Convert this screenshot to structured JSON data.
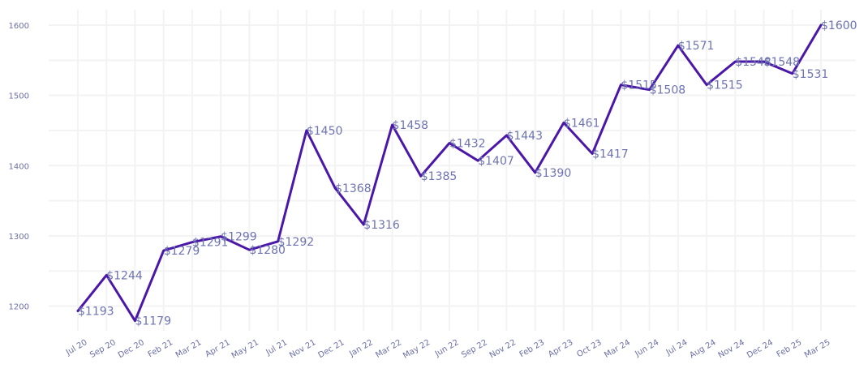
{
  "chart_data": {
    "type": "line",
    "title": "",
    "xlabel": "",
    "ylabel": "",
    "ylim": [
      1160,
      1620
    ],
    "yticks": [
      1200,
      1300,
      1400,
      1500,
      1600
    ],
    "grid": true,
    "x": [
      "Jul 20",
      "Sep 20",
      "Dec 20",
      "Feb 21",
      "Mar 21",
      "Apr 21",
      "May 21",
      "Jul 21",
      "Nov 21",
      "Dec 21",
      "Jan 22",
      "Mar 22",
      "May 22",
      "Jun 22",
      "Sep 22",
      "Nov 22",
      "Feb 23",
      "Apr 23",
      "Oct 23",
      "Mar 24",
      "Jun 24",
      "Jul 24",
      "Aug 24",
      "Nov 24",
      "Dec 24",
      "Feb 25",
      "Mar 25"
    ],
    "series": [
      {
        "values": [
          1193,
          1244,
          1179,
          1279,
          1291,
          1299,
          1280,
          1292,
          1450,
          1368,
          1316,
          1458,
          1385,
          1432,
          1407,
          1443,
          1390,
          1461,
          1417,
          1515,
          1508,
          1571,
          1515,
          1548,
          1548,
          1531,
          1600
        ],
        "labels": [
          "$1193",
          "$1244",
          "$1179",
          "$1279",
          "$1291",
          "$1299",
          "$1280",
          "$1292",
          "$1450",
          "$1368",
          "$1316",
          "$1458",
          "$1385",
          "$1432",
          "$1407",
          "$1443",
          "$1390",
          "$1461",
          "$1417",
          "$1515",
          "$1508",
          "$1571",
          "$1515",
          "$1548",
          "$1548",
          "$1531",
          "$1600"
        ],
        "color": "#4a17a8"
      }
    ],
    "label_color": "#6d73b0",
    "tick_color": "#6a6fa6"
  }
}
